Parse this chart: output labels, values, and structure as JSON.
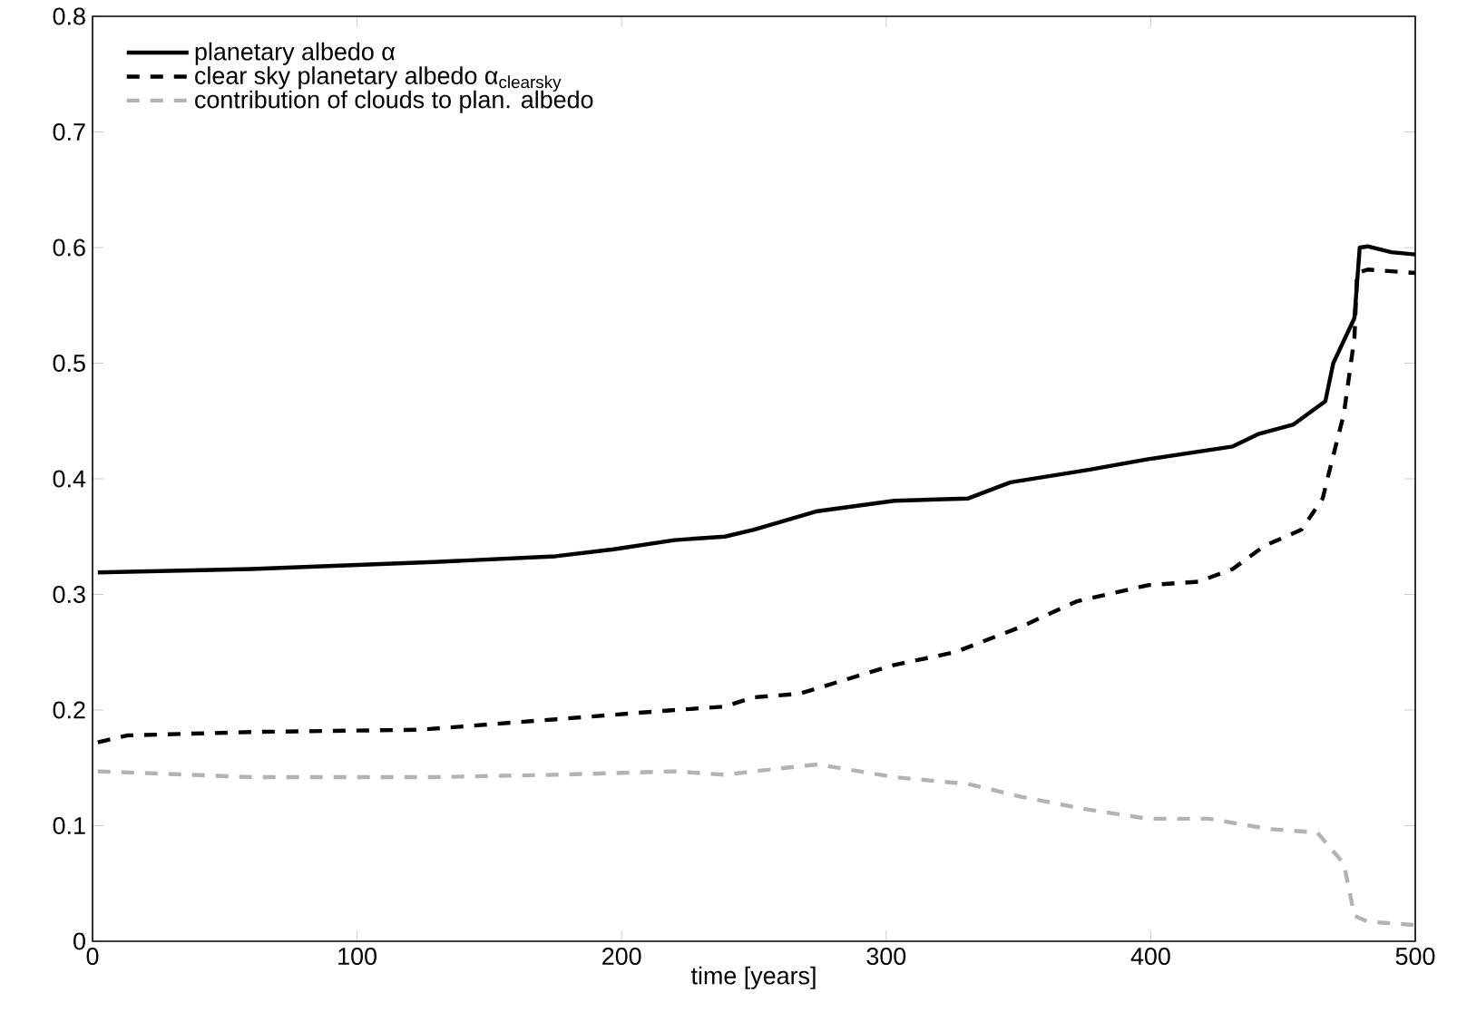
{
  "chart_data": {
    "type": "line",
    "xlabel": "time [years]",
    "xlim": [
      0,
      500
    ],
    "ylim": [
      0,
      0.8
    ],
    "xticks": [
      0,
      100,
      200,
      300,
      400,
      500
    ],
    "yticks": [
      0,
      0.1,
      0.2,
      0.3,
      0.4,
      0.5,
      0.6,
      0.7,
      0.8
    ],
    "legend": "top left",
    "grid": false,
    "series": [
      {
        "name": "planetary albedo α",
        "color": "#000000",
        "line_style": "solid",
        "x": [
          2,
          60,
          129,
          175,
          197,
          220,
          239,
          250,
          274,
          303,
          331,
          347,
          377,
          399,
          431,
          441,
          454,
          466,
          469,
          477,
          479,
          482,
          491,
          500
        ],
        "values": [
          0.319,
          0.322,
          0.328,
          0.333,
          0.339,
          0.347,
          0.35,
          0.356,
          0.372,
          0.381,
          0.383,
          0.397,
          0.408,
          0.417,
          0.428,
          0.439,
          0.447,
          0.467,
          0.5,
          0.539,
          0.6,
          0.601,
          0.596,
          0.594
        ]
      },
      {
        "name": "clear sky planetary albedo α$_{clearsky}$",
        "color": "#000000",
        "line_style": "dashed",
        "x": [
          2,
          13,
          60,
          124,
          175,
          220,
          239,
          250,
          267,
          303,
          326,
          351,
          372,
          399,
          418,
          431,
          443,
          457,
          465,
          468,
          473,
          477,
          478,
          482,
          500
        ],
        "values": [
          0.172,
          0.178,
          0.181,
          0.183,
          0.192,
          0.2,
          0.203,
          0.211,
          0.214,
          0.239,
          0.25,
          0.272,
          0.294,
          0.308,
          0.311,
          0.322,
          0.342,
          0.356,
          0.383,
          0.411,
          0.456,
          0.522,
          0.578,
          0.581,
          0.578
        ]
      },
      {
        "name": "contribution of clouds to plan. albedo",
        "color": "#b3b3b3",
        "line_style": "dashed",
        "x": [
          2,
          60,
          129,
          175,
          220,
          239,
          250,
          274,
          303,
          331,
          351,
          376,
          399,
          422,
          445,
          463,
          473,
          477,
          482,
          500
        ],
        "values": [
          0.147,
          0.142,
          0.142,
          0.144,
          0.147,
          0.144,
          0.147,
          0.153,
          0.142,
          0.136,
          0.125,
          0.114,
          0.106,
          0.106,
          0.097,
          0.094,
          0.067,
          0.022,
          0.017,
          0.014
        ]
      }
    ]
  }
}
